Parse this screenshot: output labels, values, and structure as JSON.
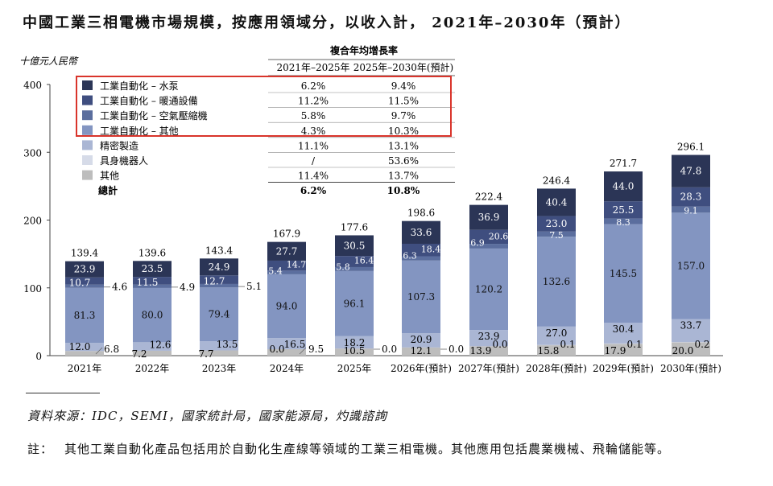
{
  "title": "中國工業三相電機市場規模，按應用領域分，以收入計， 2021年–2030年（預計）",
  "source": "資料來源：IDC，SEMI，國家統計局，國家能源局，灼識諮詢",
  "note": {
    "label": "註：",
    "text": "其他工業自動化產品包括用於自動化生產線等領域的工業三相電機。其他應用包括農業機械、飛輪儲能等。"
  },
  "colors": {
    "pump": "#2b3556",
    "hvac": "#3f4e7f",
    "compressor": "#5b6e9e",
    "automation_other": "#8395c1",
    "precision": "#aab6d4",
    "robot": "#d6dbe8",
    "others": "#bdbdbd",
    "highlight_box": "#d9342b"
  },
  "chart_data": {
    "type": "bar",
    "stacked": true,
    "ylabel": "十億元人民幣",
    "ylim": [
      0,
      400
    ],
    "yticks": [
      0,
      100,
      200,
      300,
      400
    ],
    "categories": [
      "2021年",
      "2022年",
      "2023年",
      "2024年",
      "2025年",
      "2026年(預計)",
      "2027年(預計)",
      "2028年(預計)",
      "2029年(預計)",
      "2030年(預計)"
    ],
    "series": [
      {
        "name": "其他",
        "key": "others",
        "values": [
          6.8,
          7.2,
          7.7,
          9.5,
          10.5,
          12.1,
          13.9,
          15.8,
          17.9,
          20.0
        ]
      },
      {
        "name": "具身機器人",
        "key": "robot",
        "values": [
          0.0,
          0.0,
          0.0,
          0.0,
          0.0,
          0.0,
          0.0,
          0.1,
          0.1,
          0.2
        ]
      },
      {
        "name": "精密製造",
        "key": "precision",
        "values": [
          12.0,
          12.6,
          13.5,
          16.5,
          18.2,
          20.9,
          23.9,
          27.0,
          30.4,
          33.7
        ]
      },
      {
        "name": "工業自動化 – 其他",
        "key": "automation_other",
        "values": [
          81.3,
          80.0,
          79.4,
          94.0,
          96.1,
          107.3,
          120.2,
          132.6,
          145.5,
          157.0
        ]
      },
      {
        "name": "工業自動化 – 空氣壓縮機",
        "key": "compressor",
        "values": [
          4.6,
          4.9,
          5.1,
          5.4,
          5.8,
          6.3,
          6.9,
          7.5,
          8.3,
          9.1
        ]
      },
      {
        "name": "工業自動化 – 暖通設備",
        "key": "hvac",
        "values": [
          10.7,
          11.5,
          12.7,
          14.7,
          16.4,
          18.4,
          20.6,
          23.0,
          25.5,
          28.3
        ]
      },
      {
        "name": "工業自動化 – 水泵",
        "key": "pump",
        "values": [
          23.9,
          23.5,
          24.9,
          27.7,
          30.5,
          33.6,
          36.9,
          40.4,
          44.0,
          47.8
        ]
      }
    ],
    "totals": [
      139.4,
      139.6,
      143.4,
      167.9,
      177.6,
      198.6,
      222.4,
      246.4,
      271.7,
      296.1
    ],
    "others_labels": [
      "6.8",
      "7.2",
      "7.7",
      "9.5",
      "10.5",
      "12.1",
      "13.9",
      "15.8",
      "17.9",
      "20.0"
    ],
    "robot_labels": [
      "",
      "",
      "",
      "0.0",
      "0.0",
      "0.0",
      "0.0",
      "0.1",
      "0.1",
      "0.2"
    ],
    "cagr_table": {
      "header": "複合年均增長率",
      "columns": [
        "2021年–2025年",
        "2025年–2030年(預計)"
      ],
      "rows": [
        {
          "label": "工業自動化 – 水泵",
          "key": "pump",
          "a": "6.2%",
          "b": "9.4%"
        },
        {
          "label": "工業自動化 – 暖通設備",
          "key": "hvac",
          "a": "11.2%",
          "b": "11.5%"
        },
        {
          "label": "工業自動化 – 空氣壓縮機",
          "key": "compressor",
          "a": "5.8%",
          "b": "9.7%"
        },
        {
          "label": "工業自動化 – 其他",
          "key": "automation_other",
          "a": "4.3%",
          "b": "10.3%"
        },
        {
          "label": "精密製造",
          "key": "precision",
          "a": "11.1%",
          "b": "13.1%"
        },
        {
          "label": "具身機器人",
          "key": "robot",
          "a": "/",
          "b": "53.6%"
        },
        {
          "label": "其他",
          "key": "others",
          "a": "11.4%",
          "b": "13.7%"
        },
        {
          "label": "總計",
          "key": "",
          "a": "6.2%",
          "b": "10.8%",
          "bold": true
        }
      ]
    }
  }
}
